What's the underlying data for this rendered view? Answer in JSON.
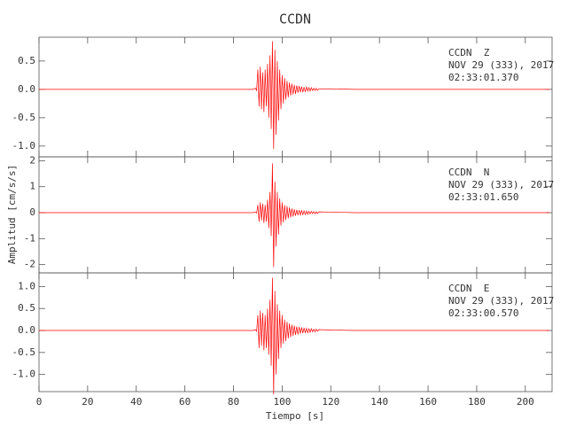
{
  "chart_data": {
    "type": "line",
    "title": "CCDN",
    "xlabel": "Tiempo [s]",
    "ylabel": "Amplitud [cm/s/s]",
    "xlim": [
      0,
      211
    ],
    "xticks": [
      0,
      20,
      40,
      60,
      80,
      100,
      120,
      140,
      160,
      180,
      200
    ],
    "panels": [
      {
        "annotations": [
          "CCDN  Z",
          "NOV 29 (333), 2017",
          "02:33:01.370"
        ],
        "color": "#ff0000",
        "ylim": [
          -1.19,
          0.92
        ],
        "yticks": [
          {
            "value": -1,
            "label": "-1.0"
          },
          -0.5,
          {
            "value": 0,
            "label": "0.0"
          },
          0.5
        ],
        "x": [
          0,
          20,
          40,
          60,
          80,
          88,
          89,
          89.5,
          90,
          90.5,
          91,
          91.5,
          92,
          92.5,
          93,
          93.5,
          94,
          94.5,
          95,
          95.5,
          96,
          96.5,
          97,
          97.5,
          98,
          98.5,
          99,
          99.5,
          100,
          100.5,
          101,
          101.5,
          102,
          102.5,
          103,
          103.5,
          104,
          104.5,
          105,
          105.5,
          106,
          106.5,
          107,
          107.5,
          108,
          108.5,
          109,
          109.5,
          110,
          110.5,
          111,
          111.5,
          112,
          112.5,
          113,
          113.5,
          114,
          114.5,
          115,
          120,
          130,
          150,
          170,
          190,
          210
        ],
        "values": [
          0,
          0,
          0,
          0,
          0,
          0,
          0.02,
          -0.02,
          0.35,
          -0.3,
          0.4,
          -0.35,
          0.3,
          -0.4,
          0.35,
          -0.3,
          0.45,
          -0.5,
          0.6,
          -0.7,
          0.85,
          -1.05,
          0.7,
          -0.8,
          0.5,
          -0.55,
          0.35,
          -0.35,
          0.25,
          -0.25,
          0.2,
          -0.18,
          0.15,
          -0.14,
          0.12,
          -0.11,
          0.1,
          -0.09,
          0.08,
          -0.08,
          0.07,
          -0.06,
          0.06,
          -0.05,
          0.05,
          -0.05,
          0.04,
          -0.04,
          0.04,
          -0.03,
          0.03,
          -0.03,
          0.03,
          -0.02,
          0.02,
          -0.02,
          0.02,
          -0.02,
          0.01,
          0.01,
          0,
          0,
          0,
          0,
          0
        ]
      },
      {
        "annotations": [
          "CCDN  N",
          "NOV 29 (333), 2017",
          "02:33:01.650"
        ],
        "color": "#ff0000",
        "ylim": [
          -2.32,
          2.15
        ],
        "yticks": [
          -2,
          -1,
          0,
          1,
          2
        ],
        "x": [
          0,
          20,
          40,
          60,
          80,
          88,
          89,
          89.5,
          90,
          90.5,
          91,
          91.5,
          92,
          92.5,
          93,
          93.5,
          94,
          94.5,
          95,
          95.5,
          96,
          96.5,
          97,
          97.5,
          98,
          98.5,
          99,
          99.5,
          100,
          100.5,
          101,
          101.5,
          102,
          102.5,
          103,
          103.5,
          104,
          104.5,
          105,
          105.5,
          106,
          106.5,
          107,
          107.5,
          108,
          108.5,
          109,
          109.5,
          110,
          110.5,
          111,
          111.5,
          112,
          112.5,
          113,
          113.5,
          114,
          114.5,
          115,
          120,
          130,
          150,
          170,
          190,
          210
        ],
        "values": [
          0,
          0,
          0,
          0,
          0,
          0,
          0.02,
          -0.02,
          0.3,
          -0.35,
          0.4,
          -0.3,
          0.35,
          -0.4,
          0.3,
          -0.35,
          0.5,
          -0.6,
          0.8,
          -0.9,
          1.9,
          -2.1,
          1.2,
          -1.3,
          0.8,
          -0.85,
          0.55,
          -0.5,
          0.4,
          -0.38,
          0.3,
          -0.28,
          0.25,
          -0.22,
          0.2,
          -0.18,
          0.16,
          -0.15,
          0.13,
          -0.12,
          0.11,
          -0.1,
          0.1,
          -0.09,
          0.08,
          -0.08,
          0.07,
          -0.07,
          0.06,
          -0.06,
          0.05,
          -0.05,
          0.05,
          -0.04,
          0.04,
          -0.04,
          0.03,
          -0.03,
          0.03,
          0.02,
          0,
          0,
          0,
          0,
          0
        ]
      },
      {
        "annotations": [
          "CCDN  E",
          "NOV 29 (333), 2017",
          "02:33:00.570"
        ],
        "color": "#ff0000",
        "ylim": [
          -1.39,
          1.31
        ],
        "yticks": [
          {
            "value": -1,
            "label": "-1.0"
          },
          -0.5,
          {
            "value": 0,
            "label": "0.0"
          },
          0.5,
          {
            "value": 1,
            "label": "1.0"
          }
        ],
        "x": [
          0,
          20,
          40,
          60,
          80,
          88,
          89,
          89.5,
          90,
          90.5,
          91,
          91.5,
          92,
          92.5,
          93,
          93.5,
          94,
          94.5,
          95,
          95.5,
          96,
          96.5,
          97,
          97.5,
          98,
          98.5,
          99,
          99.5,
          100,
          100.5,
          101,
          101.5,
          102,
          102.5,
          103,
          103.5,
          104,
          104.5,
          105,
          105.5,
          106,
          106.5,
          107,
          107.5,
          108,
          108.5,
          109,
          109.5,
          110,
          110.5,
          111,
          111.5,
          112,
          112.5,
          113,
          113.5,
          114,
          114.5,
          115,
          120,
          130,
          150,
          170,
          190,
          210
        ],
        "values": [
          0,
          0,
          0,
          0,
          0,
          0,
          0.02,
          -0.02,
          0.35,
          -0.4,
          0.45,
          -0.35,
          0.4,
          -0.45,
          0.35,
          -0.4,
          0.5,
          -0.55,
          0.7,
          -0.8,
          1.2,
          -1.45,
          0.9,
          -1.0,
          0.6,
          -0.65,
          0.45,
          -0.4,
          0.35,
          -0.3,
          0.25,
          -0.24,
          0.2,
          -0.18,
          0.16,
          -0.15,
          0.13,
          -0.12,
          0.11,
          -0.1,
          0.09,
          -0.09,
          0.08,
          -0.07,
          0.07,
          -0.06,
          0.06,
          -0.05,
          0.05,
          -0.05,
          0.04,
          -0.04,
          0.04,
          -0.03,
          0.03,
          -0.03,
          0.03,
          -0.02,
          0.02,
          0.01,
          0,
          0,
          0,
          0,
          0
        ]
      }
    ]
  }
}
